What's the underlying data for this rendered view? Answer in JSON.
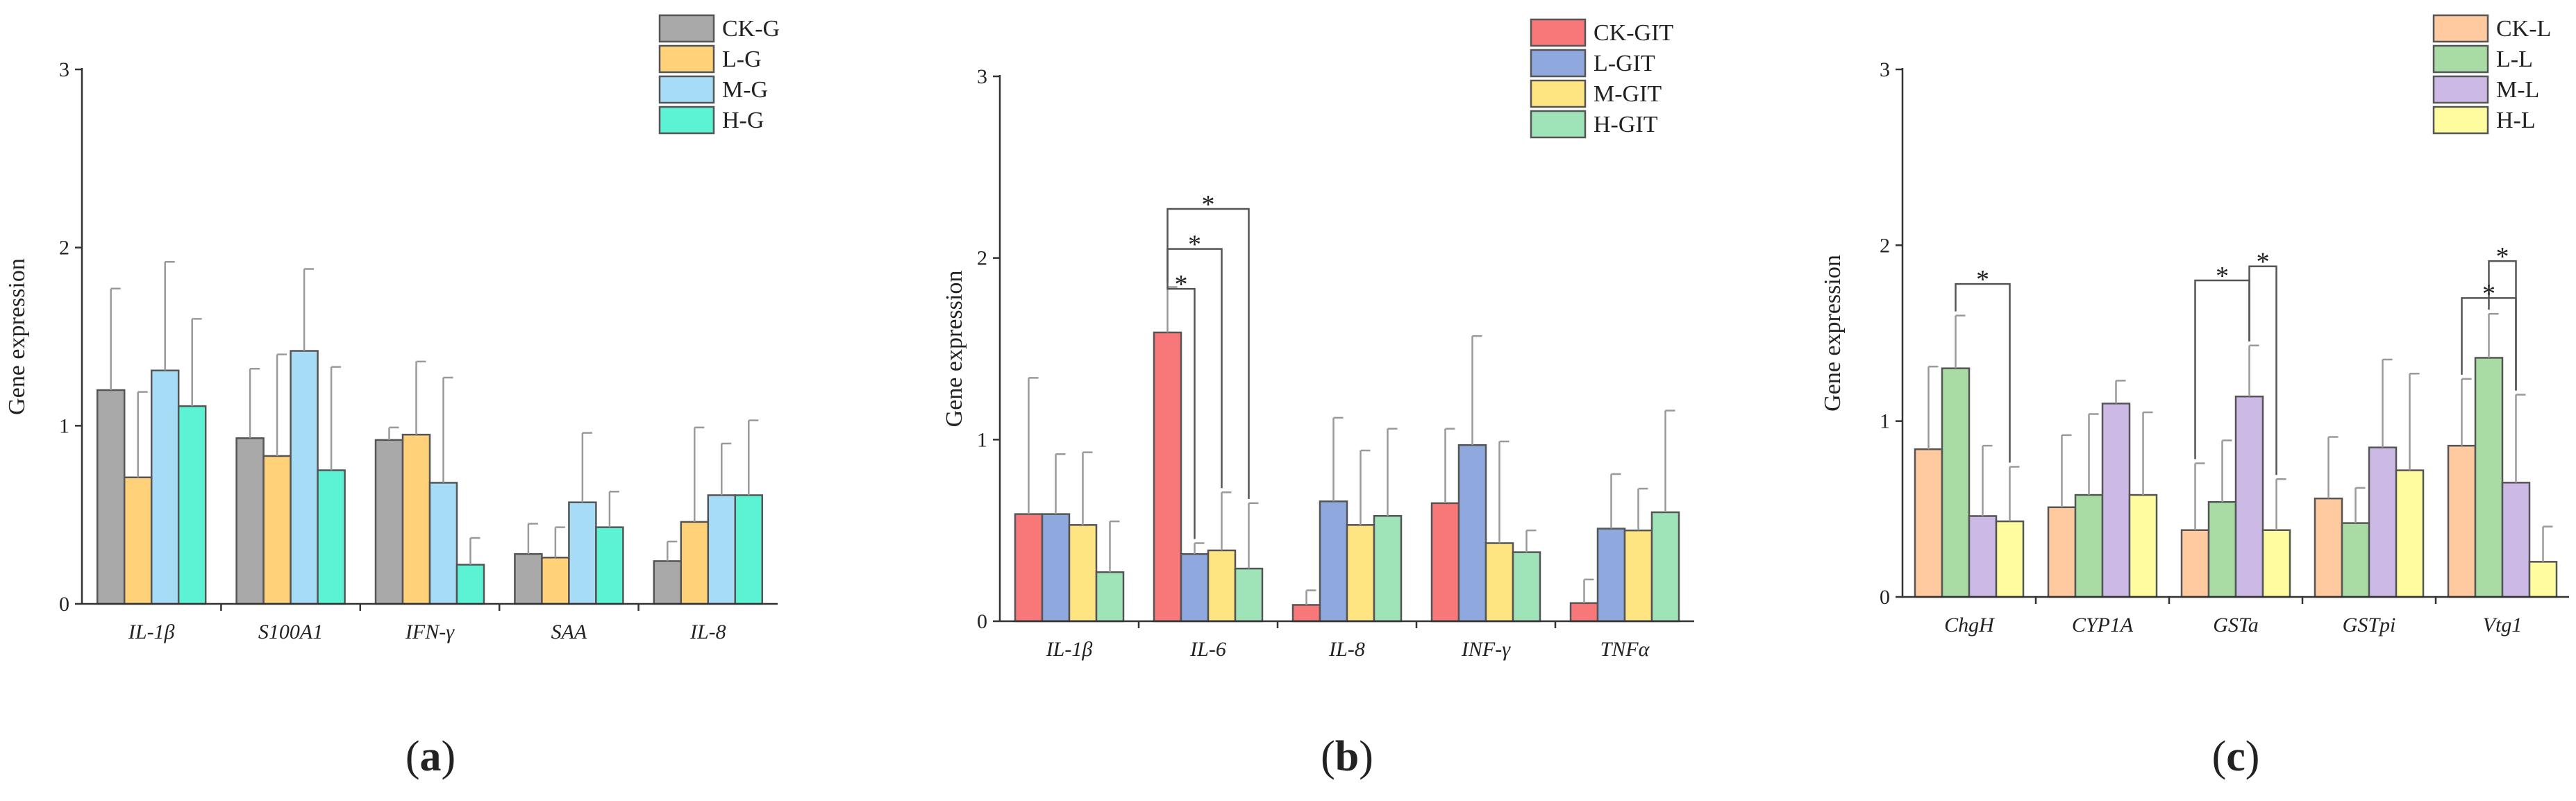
{
  "chart_data": [
    {
      "type": "bar",
      "panel_label": "a",
      "ylabel": "Gene expression",
      "ylim": [
        0,
        3
      ],
      "yticks": [
        0,
        1,
        2,
        3
      ],
      "categories": [
        "IL-1β",
        "S100A1",
        "IFN-γ",
        "SAA",
        "IL-8"
      ],
      "series": [
        {
          "name": "CK-G",
          "color": "#a9a9a9",
          "values": [
            1.2,
            0.93,
            0.92,
            0.28,
            0.24
          ],
          "errors": [
            0.57,
            0.39,
            0.07,
            0.17,
            0.11
          ]
        },
        {
          "name": "L-G",
          "color": "#ffd27a",
          "values": [
            0.71,
            0.83,
            0.95,
            0.26,
            0.46
          ],
          "errors": [
            0.48,
            0.57,
            0.41,
            0.17,
            0.53
          ]
        },
        {
          "name": "M-G",
          "color": "#a6dcf5",
          "values": [
            1.31,
            1.42,
            0.68,
            0.57,
            0.61
          ],
          "errors": [
            0.61,
            0.46,
            0.59,
            0.39,
            0.29
          ]
        },
        {
          "name": "H-G",
          "color": "#5cf2d4",
          "values": [
            1.11,
            0.75,
            0.22,
            0.43,
            0.61
          ],
          "errors": [
            0.49,
            0.58,
            0.15,
            0.2,
            0.42
          ]
        }
      ],
      "significance": []
    },
    {
      "type": "bar",
      "panel_label": "b",
      "ylabel": "Gene expression",
      "ylim": [
        0,
        3
      ],
      "yticks": [
        0,
        1,
        2,
        3
      ],
      "categories": [
        "IL-1β",
        "IL-6",
        "IL-8",
        "INF-γ",
        "TNFα"
      ],
      "series": [
        {
          "name": "CK-GIT",
          "color": "#f87779",
          "values": [
            0.59,
            1.59,
            0.09,
            0.65,
            0.1
          ],
          "errors": [
            0.75,
            0.25,
            0.08,
            0.41,
            0.13
          ]
        },
        {
          "name": "L-GIT",
          "color": "#8fa8dd",
          "values": [
            0.59,
            0.37,
            0.66,
            0.97,
            0.51
          ],
          "errors": [
            0.33,
            0.06,
            0.46,
            0.6,
            0.3
          ]
        },
        {
          "name": "M-GIT",
          "color": "#ffe482",
          "values": [
            0.53,
            0.39,
            0.53,
            0.43,
            0.5
          ],
          "errors": [
            0.4,
            0.32,
            0.41,
            0.56,
            0.23
          ]
        },
        {
          "name": "H-GIT",
          "color": "#9fe3b9",
          "values": [
            0.27,
            0.29,
            0.58,
            0.38,
            0.6
          ],
          "errors": [
            0.28,
            0.36,
            0.48,
            0.12,
            0.56
          ]
        }
      ],
      "significance": [
        {
          "category": "IL-6",
          "from_series": 0,
          "to_series": 1,
          "label": "*",
          "level": 1.83
        },
        {
          "category": "IL-6",
          "from_series": 0,
          "to_series": 2,
          "label": "*",
          "level": 2.05
        },
        {
          "category": "IL-6",
          "from_series": 0,
          "to_series": 3,
          "label": "*",
          "level": 2.27
        }
      ]
    },
    {
      "type": "bar",
      "panel_label": "c",
      "ylabel": "Gene expression",
      "ylim": [
        0,
        3
      ],
      "yticks": [
        0,
        1,
        2,
        3
      ],
      "categories": [
        "ChgH",
        "CYP1A",
        "GSTa",
        "GSTpi",
        "Vtg1"
      ],
      "series": [
        {
          "name": "CK-L",
          "color": "#ffcaa0",
          "values": [
            0.84,
            0.51,
            0.38,
            0.56,
            0.86
          ],
          "errors": [
            0.47,
            0.41,
            0.38,
            0.35,
            0.38
          ]
        },
        {
          "name": "L-L",
          "color": "#a8dca4",
          "values": [
            1.3,
            0.58,
            0.54,
            0.42,
            1.36
          ],
          "errors": [
            0.3,
            0.46,
            0.35,
            0.2,
            0.25
          ]
        },
        {
          "name": "M-L",
          "color": "#cdb9e5",
          "values": [
            0.46,
            1.1,
            1.14,
            0.85,
            0.65
          ],
          "errors": [
            0.4,
            0.13,
            0.29,
            0.5,
            0.5
          ]
        },
        {
          "name": "H-L",
          "color": "#fffca0",
          "values": [
            0.43,
            0.58,
            0.38,
            0.72,
            0.2
          ],
          "errors": [
            0.31,
            0.47,
            0.29,
            0.55,
            0.2
          ]
        }
      ],
      "significance": [
        {
          "category": "ChgH",
          "from_series": 1,
          "to_series": 3,
          "label": "*",
          "level": 1.78
        },
        {
          "category": "GSTa",
          "from_series": 0,
          "to_series": 2,
          "label": "*",
          "level": 1.8
        },
        {
          "category": "GSTa",
          "from_series": 2,
          "to_series": 3,
          "label": "*",
          "level": 1.88
        },
        {
          "category": "Vtg1",
          "from_series": 1,
          "to_series": 2,
          "label": "*",
          "level": 1.91
        },
        {
          "category": "Vtg1",
          "from_series": 0,
          "to_series": 2,
          "label": "*",
          "level": 1.7
        }
      ]
    }
  ]
}
